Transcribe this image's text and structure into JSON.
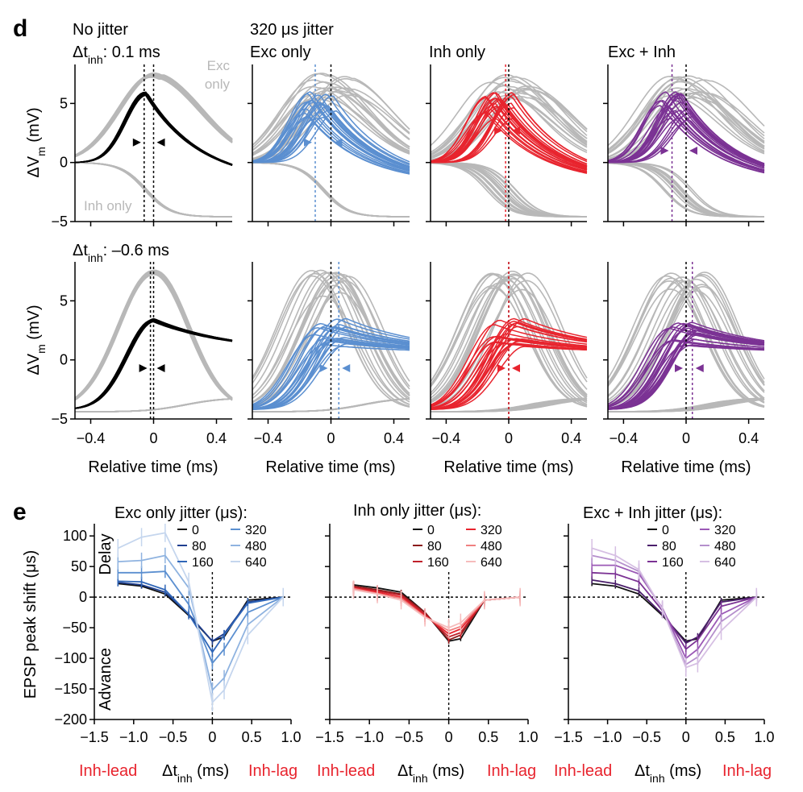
{
  "panels": {
    "d": "d",
    "e": "e"
  },
  "section_d": {
    "row1_label_prefix": "Δt",
    "row1_label_sub": "inh",
    "row1_label_value": ": 0.1 ms",
    "row2_label_prefix": "Δt",
    "row2_label_sub": "inh",
    "row2_label_value": ": –0.6 ms",
    "titles": [
      "No jitter",
      "Exc only",
      "Inh only",
      "Exc + Inh"
    ],
    "jitter_title": "320 μs jitter",
    "annotation_exc": [
      "Exc",
      "only"
    ],
    "annotation_inh": "Inh only",
    "ylabel_prefix": "ΔV",
    "ylabel_sub": "m",
    "ylabel_unit": " (mV)",
    "xlabel": "Relative time (ms)",
    "yticks": [
      "5",
      "0",
      "−5"
    ],
    "xticks": [
      "−0.4",
      "0",
      "0.4"
    ],
    "colors": {
      "none": "#000000",
      "exc": "#5b8fd0",
      "inh": "#e8242e",
      "both": "#7b3294",
      "gray": "#b8b8b8"
    }
  },
  "section_e": {
    "ylabel": "EPSP peak shift (μs)",
    "xlabel_prefix": "Δt",
    "xlabel_sub": "inh",
    "xlabel_unit": " (ms)",
    "lead_label": "Inh-lead",
    "lag_label": "Inh-lag",
    "delay_label": "Delay",
    "advance_label": "Advance",
    "yticks": [
      "100",
      "50",
      "0",
      "−50",
      "−100",
      "−150",
      "−200"
    ],
    "xticks": [
      "−1.5",
      "−1.0",
      "−0.5",
      "0",
      "0.5",
      "1.0"
    ],
    "legend_labels": [
      "0",
      "80",
      "160",
      "320",
      "480",
      "640"
    ],
    "titles": [
      "Exc only jitter (μs):",
      "Inh only jitter (μs):",
      "Exc + Inh jitter (μs):"
    ]
  },
  "chart_data": [
    {
      "type": "line",
      "title": "Exc only jitter (μs):",
      "xlabel": "Δt_inh (ms)",
      "ylabel": "EPSP peak shift (μs)",
      "xlim": [
        -1.5,
        1.0
      ],
      "ylim": [
        -200,
        120
      ],
      "x": [
        -1.2,
        -0.9,
        -0.6,
        -0.3,
        0,
        0.15,
        0.45,
        0.9
      ],
      "series": [
        {
          "name": "0",
          "color": "#111111",
          "values": [
            22,
            18,
            5,
            -30,
            -72,
            -65,
            -5,
            0
          ]
        },
        {
          "name": "80",
          "color": "#1f3f8f",
          "values": [
            24,
            20,
            8,
            -28,
            -72,
            -60,
            -8,
            0
          ]
        },
        {
          "name": "160",
          "color": "#2f66b8",
          "values": [
            26,
            25,
            12,
            -28,
            -90,
            -62,
            -10,
            0
          ]
        },
        {
          "name": "320",
          "color": "#5b8fd0",
          "values": [
            40,
            40,
            42,
            -12,
            -108,
            -85,
            -25,
            0
          ]
        },
        {
          "name": "480",
          "color": "#8fb3e0",
          "values": [
            58,
            60,
            68,
            15,
            -152,
            -132,
            -45,
            0
          ]
        },
        {
          "name": "640",
          "color": "#c5d6ee",
          "values": [
            80,
            98,
            105,
            25,
            -172,
            -152,
            -62,
            0
          ]
        }
      ]
    },
    {
      "type": "line",
      "title": "Inh only jitter (μs):",
      "xlabel": "Δt_inh (ms)",
      "ylabel": "EPSP peak shift (μs)",
      "xlim": [
        -1.5,
        1.0
      ],
      "ylim": [
        -200,
        120
      ],
      "x": [
        -1.2,
        -0.9,
        -0.6,
        -0.3,
        0,
        0.15,
        0.45,
        0.9
      ],
      "series": [
        {
          "name": "0",
          "color": "#111111",
          "values": [
            20,
            15,
            8,
            -25,
            -72,
            -68,
            -5,
            0
          ]
        },
        {
          "name": "80",
          "color": "#8b1a1a",
          "values": [
            18,
            12,
            5,
            -25,
            -70,
            -62,
            -5,
            0
          ]
        },
        {
          "name": "160",
          "color": "#c0202a",
          "values": [
            16,
            10,
            3,
            -28,
            -65,
            -58,
            -5,
            0
          ]
        },
        {
          "name": "320",
          "color": "#e8242e",
          "values": [
            15,
            8,
            0,
            -30,
            -60,
            -52,
            -5,
            0
          ]
        },
        {
          "name": "480",
          "color": "#f08080",
          "values": [
            14,
            6,
            -2,
            -32,
            -55,
            -48,
            -5,
            0
          ]
        },
        {
          "name": "640",
          "color": "#f6bcbc",
          "values": [
            12,
            5,
            -5,
            -33,
            -50,
            -42,
            -5,
            0
          ]
        }
      ]
    },
    {
      "type": "line",
      "title": "Exc + Inh jitter (μs):",
      "xlabel": "Δt_inh (ms)",
      "ylabel": "EPSP peak shift (μs)",
      "xlim": [
        -1.5,
        1.0
      ],
      "ylim": [
        -200,
        120
      ],
      "x": [
        -1.2,
        -0.9,
        -0.6,
        -0.3,
        0,
        0.15,
        0.45,
        0.9
      ],
      "series": [
        {
          "name": "0",
          "color": "#111111",
          "values": [
            22,
            18,
            5,
            -30,
            -72,
            -68,
            -5,
            0
          ]
        },
        {
          "name": "80",
          "color": "#4b1f6b",
          "values": [
            28,
            22,
            10,
            -28,
            -75,
            -65,
            -8,
            0
          ]
        },
        {
          "name": "160",
          "color": "#7b3294",
          "values": [
            40,
            38,
            25,
            -22,
            -85,
            -70,
            -15,
            0
          ]
        },
        {
          "name": "320",
          "color": "#9b59b6",
          "values": [
            52,
            52,
            38,
            -18,
            -100,
            -85,
            -28,
            0
          ]
        },
        {
          "name": "480",
          "color": "#b58fcc",
          "values": [
            68,
            60,
            42,
            -20,
            -110,
            -98,
            -40,
            0
          ]
        },
        {
          "name": "640",
          "color": "#d6bfe3",
          "values": [
            80,
            68,
            45,
            -20,
            -115,
            -108,
            -55,
            0
          ]
        }
      ]
    }
  ]
}
